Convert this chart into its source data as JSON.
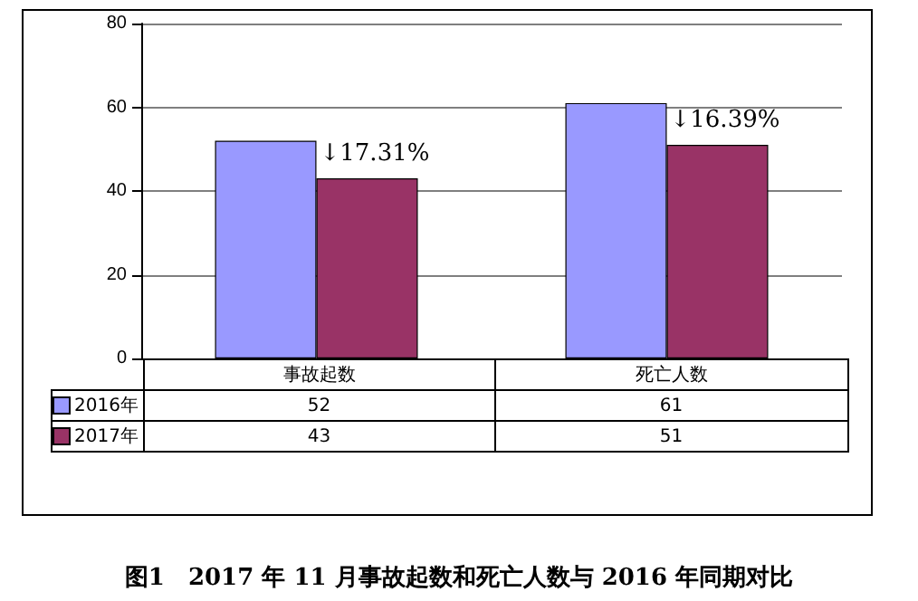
{
  "chart_data": {
    "type": "bar",
    "title": "图1　2017 年 11 月事故起数和死亡人数与 2016 年同期对比",
    "categories": [
      "事故起数",
      "死亡人数"
    ],
    "series": [
      {
        "name": "2016年",
        "color": "#9999ff",
        "values": [
          52,
          61
        ]
      },
      {
        "name": "2017年",
        "color": "#993366",
        "values": [
          43,
          51
        ]
      }
    ],
    "ylim": [
      0,
      80
    ],
    "yticks": [
      0,
      20,
      40,
      60,
      80
    ],
    "grid": "y",
    "legend": "bottom",
    "data_labels": true,
    "annotations": [
      {
        "text": "↓17.31%",
        "x": "事故起数",
        "y": 43
      },
      {
        "text": "↓16.39%",
        "x": "死亡人数",
        "y": 51
      }
    ]
  }
}
